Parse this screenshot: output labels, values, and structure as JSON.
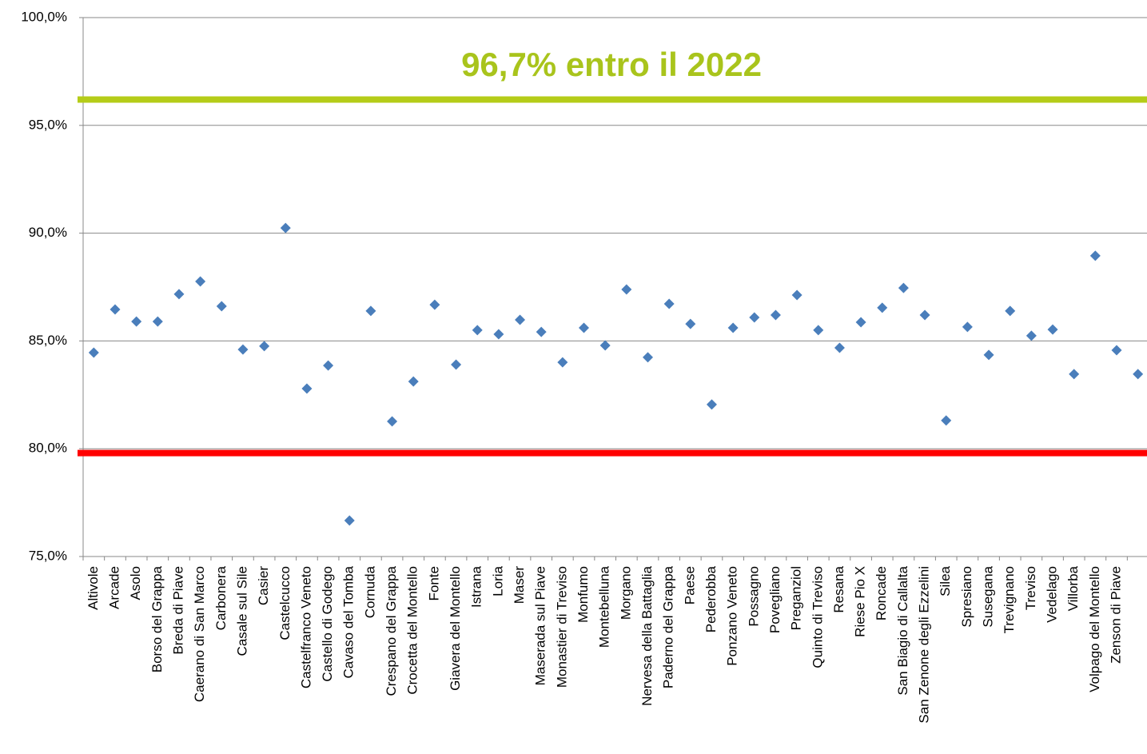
{
  "chart_data": {
    "type": "scatter",
    "categories": [
      "Altivole",
      "Arcade",
      "Asolo",
      "Borso del Grappa",
      "Breda di Piave",
      "Caerano di San Marco",
      "Carbonera",
      "Casale sul Sile",
      "Casier",
      "Castelcucco",
      "Castelfranco Veneto",
      "Castello di Godego",
      "Cavaso del Tomba",
      "Cornuda",
      "Crespano del Grappa",
      "Crocetta del Montello",
      "Fonte",
      "Giavera del Montello",
      "Istrana",
      "Loria",
      "Maser",
      "Maserada sul Piave",
      "Monastier di Treviso",
      "Monfumo",
      "Montebelluna",
      "Morgano",
      "Nervesa della Battaglia",
      "Paderno del Grappa",
      "Paese",
      "Pederobba",
      "Ponzano Veneto",
      "Possagno",
      "Povegliano",
      "Preganziol",
      "Quinto di Treviso",
      "Resana",
      "Riese Pio X",
      "Roncade",
      "San Biagio di Callalta",
      "San Zenone degli Ezzelini",
      "Silea",
      "Spresiano",
      "Susegana",
      "Trevignano",
      "Treviso",
      "Vedelago",
      "Villorba",
      "Volpago del Montello",
      "Zenson di Piave",
      null
    ],
    "values": [
      84.46,
      86.46,
      85.9,
      85.9,
      87.17,
      87.76,
      86.61,
      84.6,
      84.76,
      90.24,
      82.79,
      83.86,
      76.67,
      86.39,
      81.27,
      83.12,
      86.68,
      83.9,
      85.5,
      85.31,
      85.98,
      85.42,
      84.01,
      85.61,
      84.79,
      87.39,
      84.24,
      86.72,
      85.79,
      82.05,
      85.61,
      86.09,
      86.2,
      87.13,
      85.5,
      84.68,
      85.87,
      86.54,
      87.46,
      86.2,
      81.31,
      85.65,
      84.35,
      86.39,
      85.24,
      85.53,
      83.46,
      88.95,
      84.57,
      83.46
    ],
    "color": "#4a7ebb",
    "ylim": [
      75,
      100
    ],
    "yticks": [
      {
        "value": 75,
        "label": "75,0%"
      },
      {
        "value": 80,
        "label": "80,0%"
      },
      {
        "value": 85,
        "label": "85,0%"
      },
      {
        "value": 90,
        "label": "90,0%"
      },
      {
        "value": 95,
        "label": "95,0%"
      },
      {
        "value": 100,
        "label": "100,0%"
      }
    ],
    "grid": true,
    "reference_lines": [
      {
        "value": 96.2,
        "color": "#b5cc18"
      },
      {
        "value": 79.8,
        "color": "#ff0000"
      }
    ],
    "annotation": "96,7% entro il 2022"
  }
}
